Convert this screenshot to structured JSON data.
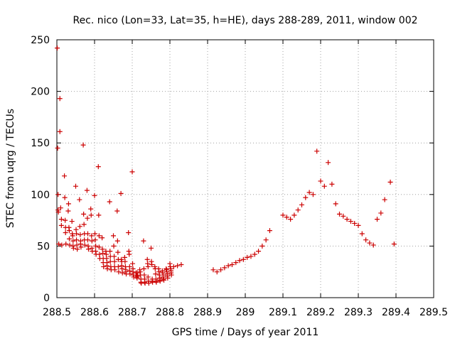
{
  "chart_data": {
    "type": "scatter",
    "title": "Rec. nico (Lon=33, Lat=35, h=HE), days 288-289, 2011, window 002",
    "xlabel": "GPS time / Days of year 2011",
    "ylabel": "STEC from uqrg / TECUs",
    "xlim": [
      288.5,
      289.5
    ],
    "ylim": [
      0,
      250
    ],
    "x_ticks": [
      "288.5",
      "288.6",
      "288.7",
      "288.8",
      "288.9",
      "289",
      "289.1",
      "289.2",
      "289.3",
      "289.4",
      "289.5"
    ],
    "y_ticks": [
      "0",
      "50",
      "100",
      "150",
      "200",
      "250"
    ],
    "grid": true,
    "marker": "+",
    "color": "#cc0000",
    "series": [
      {
        "name": "STEC",
        "points": [
          [
            288.501,
            242
          ],
          [
            288.502,
            145
          ],
          [
            288.503,
            100
          ],
          [
            288.503,
            85
          ],
          [
            288.504,
            83
          ],
          [
            288.505,
            52
          ],
          [
            288.508,
            193
          ],
          [
            288.508,
            161
          ],
          [
            288.51,
            87
          ],
          [
            288.512,
            76
          ],
          [
            288.512,
            70
          ],
          [
            288.513,
            51
          ],
          [
            288.52,
            118
          ],
          [
            288.521,
            97
          ],
          [
            288.522,
            75
          ],
          [
            288.523,
            68
          ],
          [
            288.523,
            63
          ],
          [
            288.524,
            52
          ],
          [
            288.53,
            84
          ],
          [
            288.531,
            91
          ],
          [
            288.532,
            68
          ],
          [
            288.533,
            65
          ],
          [
            288.533,
            57
          ],
          [
            288.534,
            51
          ],
          [
            288.54,
            74
          ],
          [
            288.541,
            62
          ],
          [
            288.542,
            60
          ],
          [
            288.543,
            55
          ],
          [
            288.543,
            50
          ],
          [
            288.544,
            48
          ],
          [
            288.55,
            108
          ],
          [
            288.551,
            66
          ],
          [
            288.552,
            62
          ],
          [
            288.552,
            56
          ],
          [
            288.553,
            51
          ],
          [
            288.554,
            47
          ],
          [
            288.56,
            95
          ],
          [
            288.561,
            69
          ],
          [
            288.562,
            61
          ],
          [
            288.563,
            55
          ],
          [
            288.563,
            52
          ],
          [
            288.564,
            49
          ],
          [
            288.57,
            148
          ],
          [
            288.571,
            81
          ],
          [
            288.572,
            71
          ],
          [
            288.573,
            62
          ],
          [
            288.573,
            56
          ],
          [
            288.574,
            51
          ],
          [
            288.58,
            104
          ],
          [
            288.581,
            77
          ],
          [
            288.582,
            62
          ],
          [
            288.582,
            56
          ],
          [
            288.583,
            50
          ],
          [
            288.584,
            47
          ],
          [
            288.59,
            86
          ],
          [
            288.591,
            80
          ],
          [
            288.592,
            60
          ],
          [
            288.593,
            55
          ],
          [
            288.593,
            48
          ],
          [
            288.594,
            45
          ],
          [
            288.6,
            99
          ],
          [
            288.601,
            62
          ],
          [
            288.602,
            56
          ],
          [
            288.603,
            50
          ],
          [
            288.603,
            45
          ],
          [
            288.604,
            42
          ],
          [
            288.61,
            127
          ],
          [
            288.611,
            80
          ],
          [
            288.612,
            60
          ],
          [
            288.612,
            49
          ],
          [
            288.613,
            42
          ],
          [
            288.614,
            38
          ],
          [
            288.62,
            58
          ],
          [
            288.621,
            47
          ],
          [
            288.622,
            43
          ],
          [
            288.623,
            38
          ],
          [
            288.623,
            34
          ],
          [
            288.624,
            30
          ],
          [
            288.63,
            45
          ],
          [
            288.631,
            42
          ],
          [
            288.632,
            38
          ],
          [
            288.633,
            34
          ],
          [
            288.633,
            31
          ],
          [
            288.634,
            28
          ],
          [
            288.64,
            93
          ],
          [
            288.641,
            45
          ],
          [
            288.642,
            40
          ],
          [
            288.642,
            35
          ],
          [
            288.643,
            30
          ],
          [
            288.644,
            27
          ],
          [
            288.65,
            60
          ],
          [
            288.651,
            50
          ],
          [
            288.652,
            40
          ],
          [
            288.653,
            35
          ],
          [
            288.653,
            30
          ],
          [
            288.654,
            27
          ],
          [
            288.66,
            84
          ],
          [
            288.661,
            55
          ],
          [
            288.662,
            44
          ],
          [
            288.663,
            37
          ],
          [
            288.663,
            30
          ],
          [
            288.664,
            25
          ],
          [
            288.67,
            101
          ],
          [
            288.671,
            37
          ],
          [
            288.672,
            35
          ],
          [
            288.672,
            31
          ],
          [
            288.673,
            28
          ],
          [
            288.674,
            24
          ],
          [
            288.68,
            39
          ],
          [
            288.681,
            35
          ],
          [
            288.682,
            30
          ],
          [
            288.683,
            27
          ],
          [
            288.683,
            25
          ],
          [
            288.684,
            23
          ],
          [
            288.69,
            63
          ],
          [
            288.691,
            45
          ],
          [
            288.692,
            42
          ],
          [
            288.693,
            30
          ],
          [
            288.693,
            26
          ],
          [
            288.694,
            23
          ],
          [
            288.7,
            122
          ],
          [
            288.701,
            33
          ],
          [
            288.702,
            28
          ],
          [
            288.702,
            25
          ],
          [
            288.703,
            22
          ],
          [
            288.704,
            20
          ],
          [
            288.71,
            24
          ],
          [
            288.711,
            22
          ],
          [
            288.712,
            20
          ],
          [
            288.713,
            19
          ],
          [
            288.713,
            24
          ],
          [
            288.714,
            21
          ],
          [
            288.72,
            27
          ],
          [
            288.721,
            25
          ],
          [
            288.722,
            22
          ],
          [
            288.723,
            18
          ],
          [
            288.723,
            15
          ],
          [
            288.724,
            14
          ],
          [
            288.73,
            55
          ],
          [
            288.731,
            28
          ],
          [
            288.732,
            22
          ],
          [
            288.733,
            18
          ],
          [
            288.733,
            15
          ],
          [
            288.734,
            14
          ],
          [
            288.74,
            37
          ],
          [
            288.741,
            33
          ],
          [
            288.742,
            30
          ],
          [
            288.742,
            20
          ],
          [
            288.743,
            16
          ],
          [
            288.744,
            14
          ],
          [
            288.75,
            48
          ],
          [
            288.751,
            35
          ],
          [
            288.752,
            32
          ],
          [
            288.753,
            18
          ],
          [
            288.753,
            16
          ],
          [
            288.754,
            15
          ],
          [
            288.76,
            30
          ],
          [
            288.761,
            28
          ],
          [
            288.762,
            23
          ],
          [
            288.763,
            18
          ],
          [
            288.763,
            16
          ],
          [
            288.764,
            15
          ],
          [
            288.77,
            28
          ],
          [
            288.771,
            25
          ],
          [
            288.772,
            22
          ],
          [
            288.773,
            19
          ],
          [
            288.773,
            17
          ],
          [
            288.774,
            16
          ],
          [
            288.78,
            26
          ],
          [
            288.781,
            24
          ],
          [
            288.782,
            22
          ],
          [
            288.782,
            20
          ],
          [
            288.783,
            18
          ],
          [
            288.784,
            17
          ],
          [
            288.79,
            28
          ],
          [
            288.791,
            27
          ],
          [
            288.792,
            25
          ],
          [
            288.793,
            23
          ],
          [
            288.793,
            21
          ],
          [
            288.794,
            19
          ],
          [
            288.8,
            33
          ],
          [
            288.801,
            30
          ],
          [
            288.802,
            28
          ],
          [
            288.803,
            26
          ],
          [
            288.803,
            24
          ],
          [
            288.804,
            22
          ],
          [
            288.81,
            30
          ],
          [
            288.82,
            31
          ],
          [
            288.83,
            32
          ],
          [
            288.915,
            27
          ],
          [
            288.925,
            25
          ],
          [
            288.935,
            27
          ],
          [
            288.945,
            29
          ],
          [
            288.955,
            31
          ],
          [
            288.965,
            32
          ],
          [
            288.975,
            34
          ],
          [
            288.985,
            36
          ],
          [
            288.995,
            37
          ],
          [
            289.005,
            39
          ],
          [
            289.015,
            40
          ],
          [
            289.025,
            42
          ],
          [
            289.035,
            45
          ],
          [
            289.045,
            50
          ],
          [
            289.055,
            56
          ],
          [
            289.065,
            65
          ],
          [
            289.1,
            80
          ],
          [
            289.11,
            78
          ],
          [
            289.12,
            76
          ],
          [
            289.13,
            80
          ],
          [
            289.14,
            85
          ],
          [
            289.15,
            90
          ],
          [
            289.16,
            97
          ],
          [
            289.17,
            102
          ],
          [
            289.18,
            100
          ],
          [
            289.19,
            142
          ],
          [
            289.2,
            113
          ],
          [
            289.21,
            108
          ],
          [
            289.22,
            131
          ],
          [
            289.23,
            110
          ],
          [
            289.24,
            91
          ],
          [
            289.25,
            81
          ],
          [
            289.26,
            79
          ],
          [
            289.27,
            76
          ],
          [
            289.28,
            74
          ],
          [
            289.29,
            72
          ],
          [
            289.3,
            70
          ],
          [
            289.31,
            62
          ],
          [
            289.32,
            56
          ],
          [
            289.33,
            53
          ],
          [
            289.34,
            51
          ],
          [
            289.35,
            76
          ],
          [
            289.36,
            82
          ],
          [
            289.37,
            95
          ],
          [
            289.385,
            112
          ],
          [
            289.395,
            52
          ]
        ]
      }
    ]
  }
}
